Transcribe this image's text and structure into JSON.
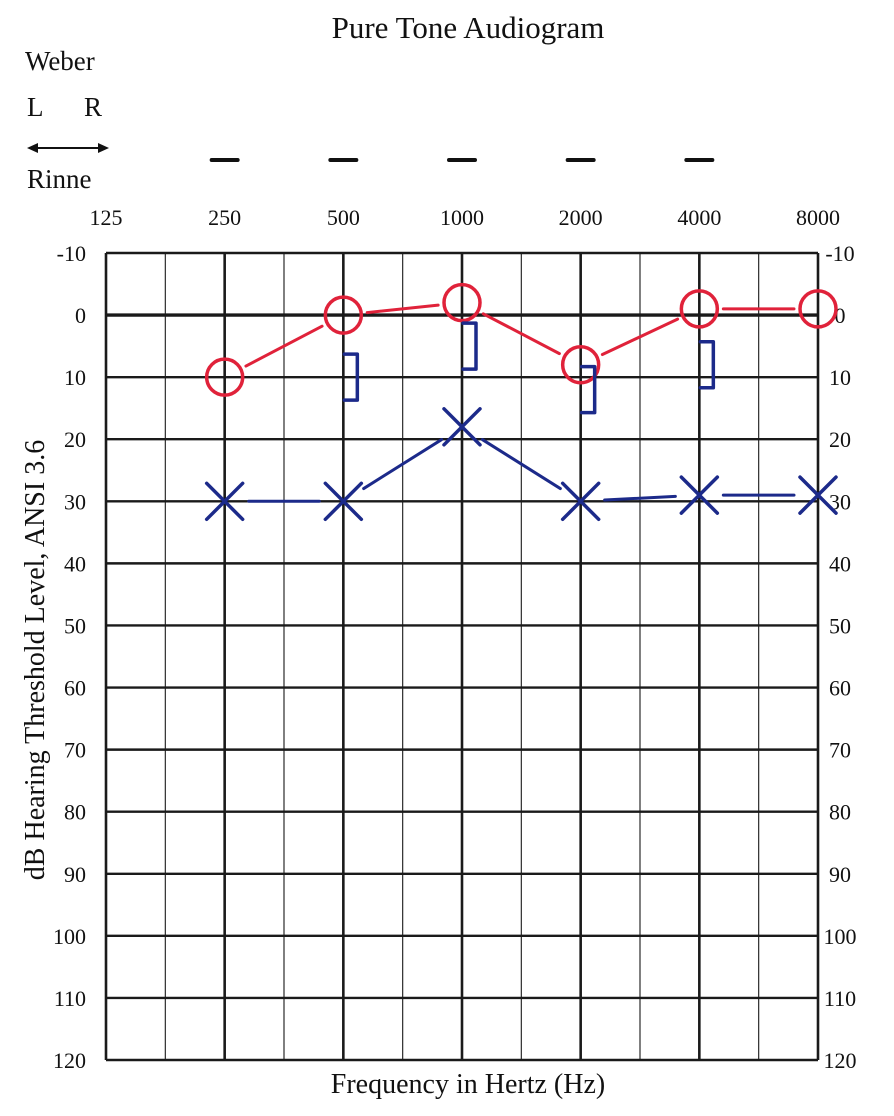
{
  "chart_data": {
    "type": "line",
    "title": "Pure Tone Audiogram",
    "xlabel": "Frequency in Hertz (Hz)",
    "ylabel": "dB Hearing Threshold Level, ANSI 3.6",
    "x_scale": "log2",
    "x_ticks": [
      "125",
      "250",
      "500",
      "1000",
      "2000",
      "4000",
      "8000"
    ],
    "y_ticks": [
      "-10",
      "0",
      "10",
      "20",
      "30",
      "40",
      "50",
      "60",
      "70",
      "80",
      "90",
      "100",
      "110",
      "120"
    ],
    "xlim": [
      125,
      8000
    ],
    "ylim": [
      -10,
      120
    ],
    "y_inverted": true,
    "grid": true,
    "weber_label": "Weber",
    "weber_left": "L",
    "weber_right": "R",
    "rinne_label": "Rinne",
    "weber_marks": [
      {
        "x": 250,
        "mark": "—"
      },
      {
        "x": 500,
        "mark": "—"
      },
      {
        "x": 1000,
        "mark": "—"
      },
      {
        "x": 2000,
        "mark": "—"
      },
      {
        "x": 4000,
        "mark": "—"
      }
    ],
    "series": [
      {
        "symbol": "circle",
        "color": "#e0223a",
        "x": [
          250,
          500,
          1000,
          2000,
          4000,
          8000
        ],
        "y": [
          10,
          0,
          -2,
          8,
          -1,
          -1
        ]
      },
      {
        "symbol": "x",
        "color": "#1c2a8a",
        "x": [
          250,
          500,
          1000,
          2000,
          4000,
          8000
        ],
        "y": [
          30,
          30,
          18,
          30,
          29,
          29
        ]
      },
      {
        "symbol": "right-bracket",
        "color": "#1c2a8a",
        "x": [
          500,
          1000,
          2000,
          4000
        ],
        "y": [
          10,
          5,
          12,
          8
        ]
      }
    ]
  }
}
